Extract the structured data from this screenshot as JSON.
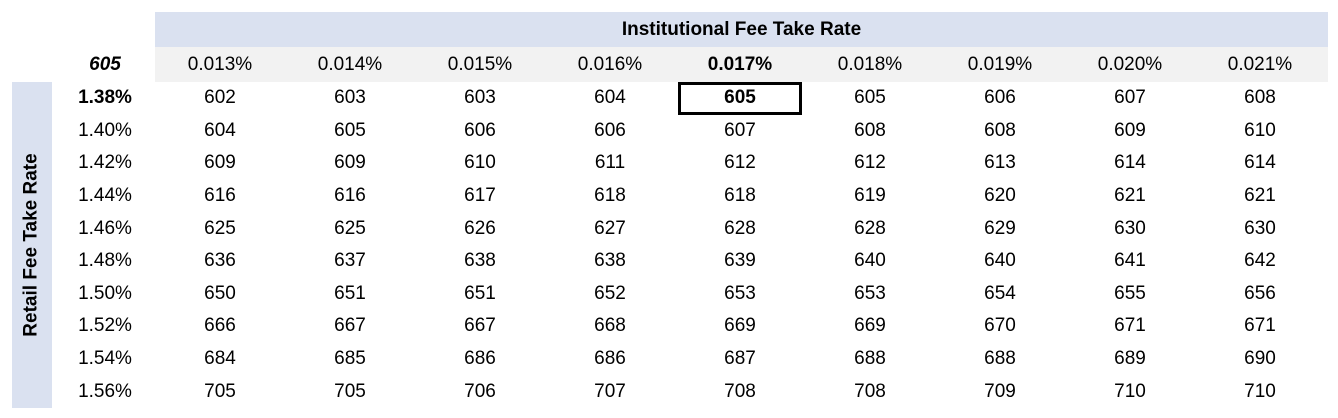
{
  "table": {
    "corner": "605",
    "column_title": "Institutional Fee Take Rate",
    "row_title": "Retail Fee Take Rate",
    "columns": [
      "0.013%",
      "0.014%",
      "0.015%",
      "0.016%",
      "0.017%",
      "0.018%",
      "0.019%",
      "0.020%",
      "0.021%"
    ],
    "rows": [
      {
        "label": "1.38%",
        "values": [
          602,
          603,
          603,
          604,
          605,
          605,
          606,
          607,
          608
        ]
      },
      {
        "label": "1.40%",
        "values": [
          604,
          605,
          606,
          606,
          607,
          608,
          608,
          609,
          610
        ]
      },
      {
        "label": "1.42%",
        "values": [
          609,
          609,
          610,
          611,
          612,
          612,
          613,
          614,
          614
        ]
      },
      {
        "label": "1.44%",
        "values": [
          616,
          616,
          617,
          618,
          618,
          619,
          620,
          621,
          621
        ]
      },
      {
        "label": "1.46%",
        "values": [
          625,
          625,
          626,
          627,
          628,
          628,
          629,
          630,
          630
        ]
      },
      {
        "label": "1.48%",
        "values": [
          636,
          637,
          638,
          638,
          639,
          640,
          640,
          641,
          642
        ]
      },
      {
        "label": "1.50%",
        "values": [
          650,
          651,
          651,
          652,
          653,
          653,
          654,
          655,
          656
        ]
      },
      {
        "label": "1.52%",
        "values": [
          666,
          667,
          667,
          668,
          669,
          669,
          670,
          671,
          671
        ]
      },
      {
        "label": "1.54%",
        "values": [
          684,
          685,
          686,
          686,
          687,
          688,
          688,
          689,
          690
        ]
      },
      {
        "label": "1.56%",
        "values": [
          705,
          705,
          706,
          707,
          708,
          708,
          709,
          710,
          710
        ]
      }
    ]
  }
}
